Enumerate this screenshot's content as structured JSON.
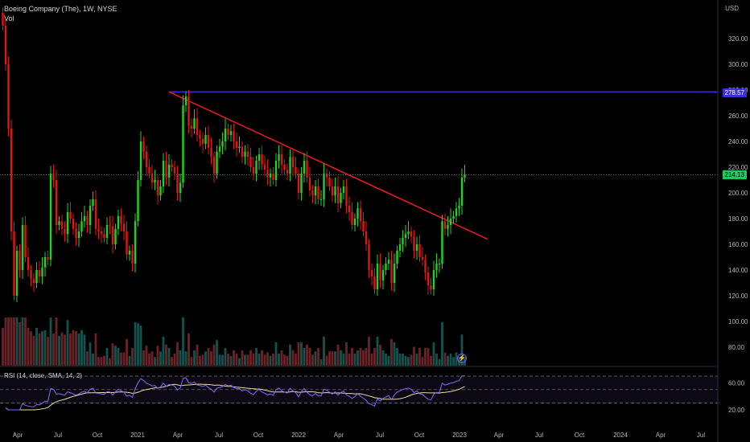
{
  "header": {
    "title": "Boeing Company (The), 1W, NYSE",
    "vol_label": "Vol",
    "currency": "USD"
  },
  "rsi": {
    "label": "RSI (14, close, SMA, 14, 2)",
    "ticks": [
      "60.00",
      "20.00"
    ]
  },
  "price_tags": {
    "resistance": "278.57",
    "last": "214.13"
  },
  "colors": {
    "up": "#26a69a",
    "down": "#ef5350",
    "candle_up": "#1fd31f",
    "candle_down": "#e01616",
    "trendline": "#ff1a1a",
    "resistance": "#3b2fd8",
    "last": "#22c55e",
    "rsi": "#8a63ff",
    "rsi_ma": "#e6e09b"
  },
  "chart_data": {
    "type": "candlestick",
    "title": "Boeing Company (The), 1W, NYSE",
    "ylabel": "USD",
    "y_ticks": [
      320,
      300,
      280,
      260,
      240,
      220,
      200,
      180,
      160,
      140,
      120,
      100,
      80
    ],
    "y_tick_labels": [
      "320.00",
      "300.00",
      "280.00",
      "260.00",
      "240.00",
      "220.00",
      "200.00",
      "180.00",
      "160.00",
      "140.00",
      "120.00",
      "100.00",
      "80.00"
    ],
    "x_tick_labels": [
      "Apr",
      "Jul",
      "Oct",
      "2021",
      "Apr",
      "Jul",
      "Oct",
      "2022",
      "Apr",
      "Jul",
      "Oct",
      "2023",
      "Apr",
      "Jul",
      "Oct",
      "2024",
      "Apr",
      "Jul"
    ],
    "closes": [
      330,
      300,
      250,
      170,
      120,
      155,
      140,
      175,
      150,
      140,
      133,
      130,
      140,
      135,
      142,
      150,
      148,
      215,
      210,
      175,
      178,
      172,
      168,
      185,
      180,
      172,
      165,
      170,
      178,
      182,
      175,
      190,
      195,
      172,
      170,
      168,
      165,
      175,
      174,
      160,
      172,
      182,
      176,
      170,
      152,
      155,
      145,
      178,
      210,
      240,
      232,
      220,
      215,
      208,
      210,
      198,
      205,
      225,
      212,
      222,
      220,
      215,
      200,
      208,
      268,
      275,
      252,
      250,
      258,
      245,
      242,
      238,
      245,
      235,
      228,
      215,
      232,
      236,
      240,
      250,
      245,
      248,
      240,
      235,
      236,
      228,
      232,
      228,
      220,
      215,
      225,
      230,
      222,
      218,
      212,
      215,
      210,
      225,
      230,
      222,
      218,
      215,
      228,
      220,
      215,
      200,
      215,
      225,
      212,
      202,
      198,
      205,
      195,
      195,
      215,
      212,
      205,
      198,
      205,
      192,
      200,
      205,
      190,
      185,
      175,
      180,
      188,
      178,
      170,
      160,
      140,
      135,
      125,
      145,
      132,
      140,
      145,
      148,
      130,
      145,
      155,
      160,
      165,
      168,
      170,
      166,
      155,
      160,
      150,
      148,
      138,
      128,
      125,
      140,
      145,
      145,
      178,
      172,
      175,
      180,
      182,
      188,
      190,
      212,
      214
    ],
    "resistance": 278.57,
    "last_price": 214.13,
    "trendline": [
      {
        "date": "2021-03",
        "value": 278.57
      },
      {
        "date": "2023-03",
        "value": 164
      }
    ],
    "rsi_ylim": [
      0,
      100
    ],
    "rsi_levels": [
      70,
      50,
      30
    ]
  }
}
